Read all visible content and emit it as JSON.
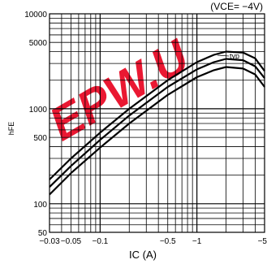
{
  "chart_data": {
    "type": "line",
    "title": "",
    "condition": "(VCE= −4V)",
    "xlabel": "IC  (A)",
    "ylabel": "hFE",
    "x_scale": "log",
    "y_scale": "log",
    "xlim": [
      0.03,
      5
    ],
    "ylim": [
      50,
      10000
    ],
    "x_ticks": [
      {
        "value": 0.03,
        "label": "−0.03"
      },
      {
        "value": 0.05,
        "label": "−0.05"
      },
      {
        "value": 0.1,
        "label": "−0.1"
      },
      {
        "value": 0.5,
        "label": "−0.5"
      },
      {
        "value": 1,
        "label": "−1"
      },
      {
        "value": 5,
        "label": "−5"
      }
    ],
    "y_ticks": [
      {
        "value": 50,
        "label": "50"
      },
      {
        "value": 100,
        "label": "100"
      },
      {
        "value": 500,
        "label": "500"
      },
      {
        "value": 1000,
        "label": "1000"
      },
      {
        "value": 5000,
        "label": "5000"
      },
      {
        "value": 10000,
        "label": "10000"
      }
    ],
    "grid": true,
    "annotation": "typ",
    "series": [
      {
        "x": [
          0.03,
          0.05,
          0.1,
          0.2,
          0.5,
          1.0,
          1.5,
          2.0,
          3.0,
          4.0,
          5.0
        ],
        "y": [
          180,
          300,
          560,
          1000,
          2000,
          3100,
          3700,
          4000,
          3900,
          3400,
          2500
        ]
      },
      {
        "x": [
          0.03,
          0.05,
          0.1,
          0.2,
          0.5,
          1.0,
          1.5,
          2.0,
          3.0,
          4.0,
          5.0
        ],
        "y": [
          150,
          250,
          470,
          850,
          1700,
          2600,
          3100,
          3350,
          3250,
          2800,
          2100
        ]
      },
      {
        "x": [
          0.03,
          0.05,
          0.1,
          0.2,
          0.5,
          1.0,
          1.5,
          2.0,
          3.0,
          4.0,
          5.0
        ],
        "y": [
          125,
          210,
          390,
          700,
          1400,
          2150,
          2550,
          2750,
          2650,
          2300,
          1700
        ]
      }
    ]
  },
  "watermark": {
    "text": "EPW.U",
    "color": "#e8001c"
  }
}
